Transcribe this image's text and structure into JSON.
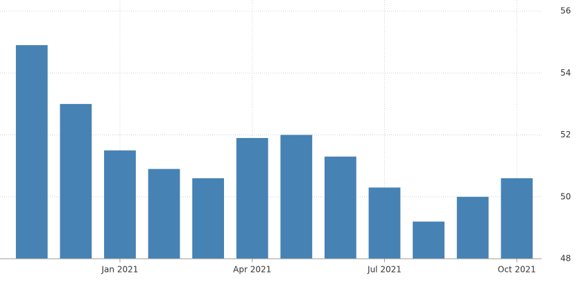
{
  "chart_data": {
    "type": "bar",
    "categories": [
      null,
      null,
      "Jan 2021",
      null,
      null,
      "Apr 2021",
      null,
      null,
      "Jul 2021",
      null,
      null,
      "Oct 2021"
    ],
    "values": [
      54.9,
      53.0,
      51.5,
      50.9,
      50.6,
      51.9,
      52.0,
      51.3,
      50.3,
      49.2,
      50.0,
      50.6
    ],
    "color": "#4682b4",
    "ylim": [
      48,
      56
    ],
    "yticks": [
      48,
      50,
      52,
      54,
      56
    ],
    "grid": true
  }
}
